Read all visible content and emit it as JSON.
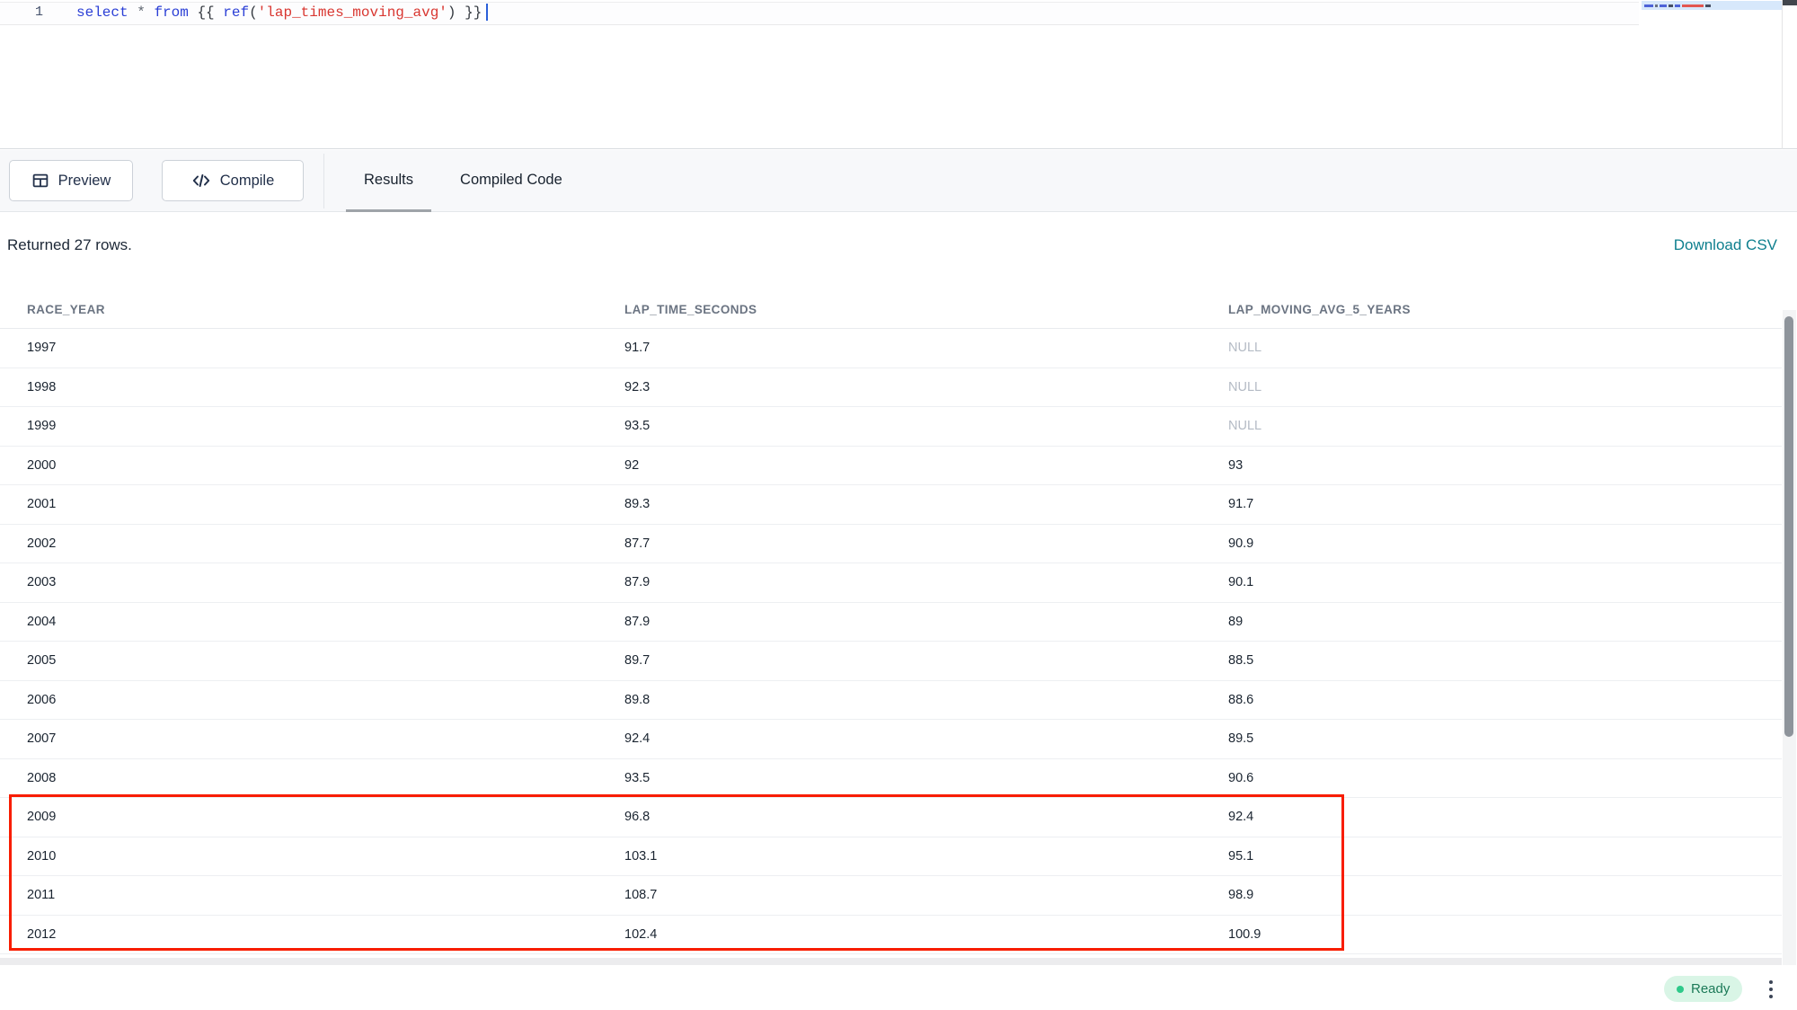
{
  "editor": {
    "line_number": "1",
    "code_tokens": [
      {
        "text": "select",
        "type": "keyword"
      },
      {
        "text": " ",
        "type": "plain"
      },
      {
        "text": "*",
        "type": "operator"
      },
      {
        "text": " ",
        "type": "plain"
      },
      {
        "text": "from",
        "type": "keyword"
      },
      {
        "text": " {{ ",
        "type": "plain"
      },
      {
        "text": "ref",
        "type": "keyword"
      },
      {
        "text": "(",
        "type": "plain"
      },
      {
        "text": "'lap_times_moving_avg'",
        "type": "string"
      },
      {
        "text": ")",
        "type": "plain"
      },
      {
        "text": " }}",
        "type": "plain"
      }
    ],
    "minimap_segments": [
      {
        "width": 10,
        "color": "#4d63d8"
      },
      {
        "width": 3,
        "color": "#6b7280"
      },
      {
        "width": 8,
        "color": "#4d63d8"
      },
      {
        "width": 5,
        "color": "#474f63"
      },
      {
        "width": 6,
        "color": "#4d63d8"
      },
      {
        "width": 24,
        "color": "#e25750"
      },
      {
        "width": 6,
        "color": "#474f63"
      }
    ]
  },
  "toolbar": {
    "preview_label": "Preview",
    "compile_label": "Compile",
    "tabs": [
      {
        "label": "Results",
        "active": true
      },
      {
        "label": "Compiled Code",
        "active": false
      }
    ]
  },
  "results": {
    "summary": "Returned 27 rows.",
    "download_label": "Download CSV",
    "columns": [
      "RACE_YEAR",
      "LAP_TIME_SECONDS",
      "LAP_MOVING_AVG_5_YEARS"
    ],
    "rows": [
      {
        "race_year": "1997",
        "lap_time_seconds": "91.7",
        "lap_moving_avg_5_years": "NULL"
      },
      {
        "race_year": "1998",
        "lap_time_seconds": "92.3",
        "lap_moving_avg_5_years": "NULL"
      },
      {
        "race_year": "1999",
        "lap_time_seconds": "93.5",
        "lap_moving_avg_5_years": "NULL"
      },
      {
        "race_year": "2000",
        "lap_time_seconds": "92",
        "lap_moving_avg_5_years": "93"
      },
      {
        "race_year": "2001",
        "lap_time_seconds": "89.3",
        "lap_moving_avg_5_years": "91.7"
      },
      {
        "race_year": "2002",
        "lap_time_seconds": "87.7",
        "lap_moving_avg_5_years": "90.9"
      },
      {
        "race_year": "2003",
        "lap_time_seconds": "87.9",
        "lap_moving_avg_5_years": "90.1"
      },
      {
        "race_year": "2004",
        "lap_time_seconds": "87.9",
        "lap_moving_avg_5_years": "89"
      },
      {
        "race_year": "2005",
        "lap_time_seconds": "89.7",
        "lap_moving_avg_5_years": "88.5"
      },
      {
        "race_year": "2006",
        "lap_time_seconds": "89.8",
        "lap_moving_avg_5_years": "88.6"
      },
      {
        "race_year": "2007",
        "lap_time_seconds": "92.4",
        "lap_moving_avg_5_years": "89.5"
      },
      {
        "race_year": "2008",
        "lap_time_seconds": "93.5",
        "lap_moving_avg_5_years": "90.6"
      },
      {
        "race_year": "2009",
        "lap_time_seconds": "96.8",
        "lap_moving_avg_5_years": "92.4"
      },
      {
        "race_year": "2010",
        "lap_time_seconds": "103.1",
        "lap_moving_avg_5_years": "95.1"
      },
      {
        "race_year": "2011",
        "lap_time_seconds": "108.7",
        "lap_moving_avg_5_years": "98.9"
      },
      {
        "race_year": "2012",
        "lap_time_seconds": "102.4",
        "lap_moving_avg_5_years": "100.9"
      }
    ],
    "highlighted_years": [
      "2009",
      "2010",
      "2011",
      "2012"
    ]
  },
  "status_bar": {
    "ready_label": "Ready"
  },
  "colors": {
    "keyword": "#2b3fd6",
    "string": "#d93731",
    "plain": "#33383f",
    "operator": "#5c636e",
    "download_link": "#0e7f8e",
    "highlight_box": "#f81d00",
    "ready_bg": "#d9f5e6",
    "ready_dot": "#2ec98a",
    "ready_text": "#1c7a58",
    "active_tab_underline": "#9fa4a9"
  }
}
